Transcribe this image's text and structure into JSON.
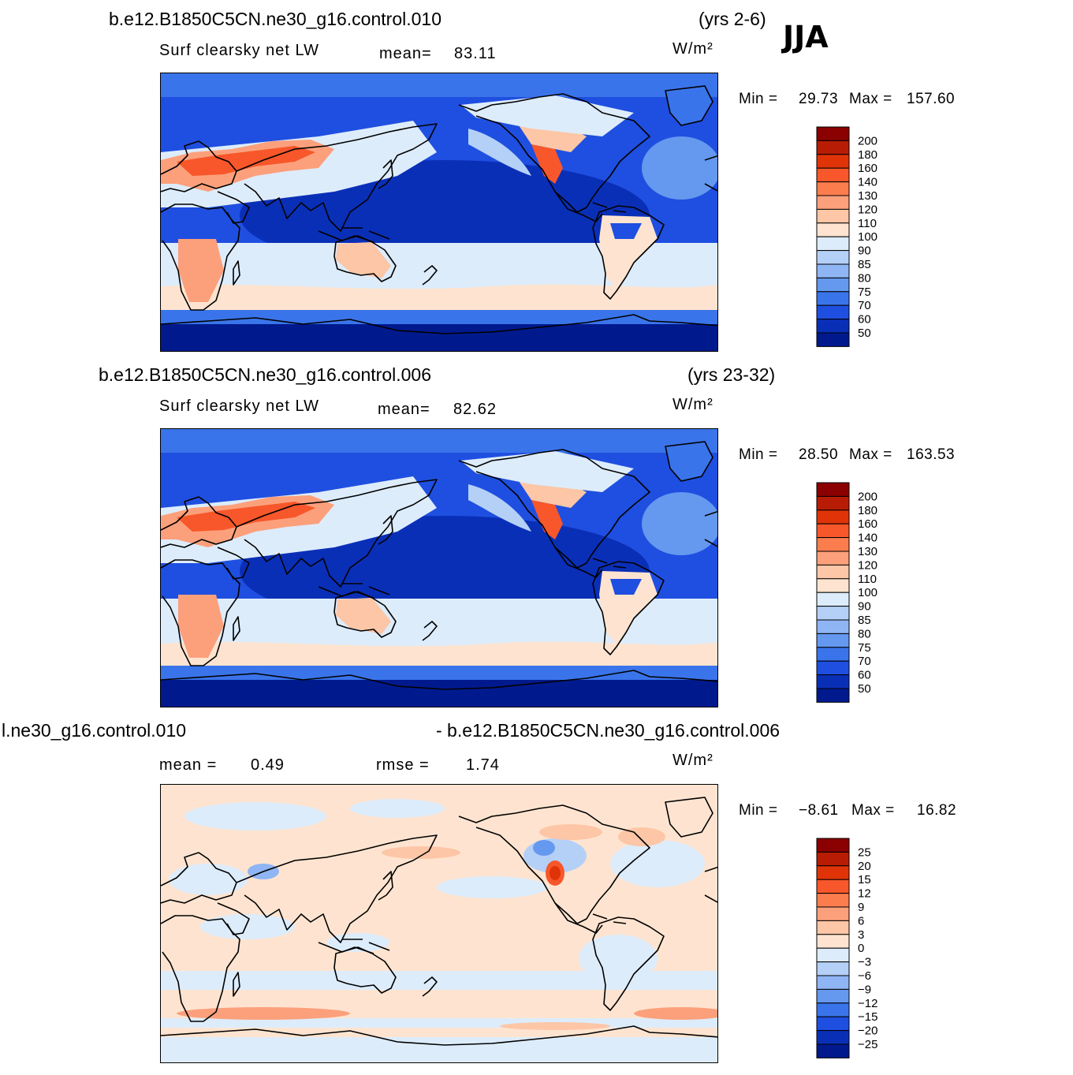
{
  "season": "JJA",
  "panels": [
    {
      "case": "b.e12.B1850C5CN.ne30_g16.control.010",
      "years": "(yrs 2-6)",
      "variable": "Surf  clearsky  net  LW",
      "stat1_label": "mean=",
      "stat1_value": "83.11",
      "units": "W/m²",
      "min_label": "Min  =",
      "min_value": "29.73",
      "max_label": "Max  =",
      "max_value": "157.60",
      "colorbar_labels": [
        "200",
        "180",
        "160",
        "140",
        "130",
        "120",
        "110",
        "100",
        "90",
        "85",
        "80",
        "75",
        "70",
        "60",
        "50"
      ],
      "colorbar_colors": [
        "#8b0000",
        "#b81c04",
        "#e03408",
        "#f7572a",
        "#fb7d4e",
        "#fca07c",
        "#fdc6a6",
        "#fee4d0",
        "#ddecfb",
        "#b4d0f7",
        "#8fb5f4",
        "#6598ef",
        "#3a74ea",
        "#1f4fe0",
        "#0a2fb7",
        "#001a8e"
      ]
    },
    {
      "case": "b.e12.B1850C5CN.ne30_g16.control.006",
      "years": "(yrs 23-32)",
      "variable": "Surf  clearsky  net  LW",
      "stat1_label": "mean=",
      "stat1_value": "82.62",
      "units": "W/m²",
      "min_label": "Min  =",
      "min_value": "28.50",
      "max_label": "Max  =",
      "max_value": "163.53",
      "colorbar_labels": [
        "200",
        "180",
        "160",
        "140",
        "130",
        "120",
        "110",
        "100",
        "90",
        "85",
        "80",
        "75",
        "70",
        "60",
        "50"
      ],
      "colorbar_colors": [
        "#8b0000",
        "#b81c04",
        "#e03408",
        "#f7572a",
        "#fb7d4e",
        "#fca07c",
        "#fdc6a6",
        "#fee4d0",
        "#ddecfb",
        "#b4d0f7",
        "#8fb5f4",
        "#6598ef",
        "#3a74ea",
        "#1f4fe0",
        "#0a2fb7",
        "#001a8e"
      ]
    },
    {
      "case_left": "l.ne30_g16.control.010",
      "case_right": "- b.e12.B1850C5CN.ne30_g16.control.006",
      "stat1_label": "mean  =",
      "stat1_value": "0.49",
      "stat2_label": "rmse  =",
      "stat2_value": "1.74",
      "units": "W/m²",
      "min_label": "Min  =",
      "min_value": "−8.61",
      "max_label": "Max  =",
      "max_value": "16.82",
      "colorbar_labels": [
        "25",
        "20",
        "15",
        "12",
        "9",
        "6",
        "3",
        "0",
        "−3",
        "−6",
        "−9",
        "−12",
        "−15",
        "−20",
        "−25"
      ],
      "colorbar_colors": [
        "#8b0000",
        "#b81c04",
        "#e03408",
        "#f7572a",
        "#fb7d4e",
        "#fca07c",
        "#fdc6a6",
        "#fee4d0",
        "#ddecfb",
        "#b4d0f7",
        "#8fb5f4",
        "#6598ef",
        "#3a74ea",
        "#1f4fe0",
        "#0a2fb7",
        "#001a8e"
      ]
    }
  ]
}
